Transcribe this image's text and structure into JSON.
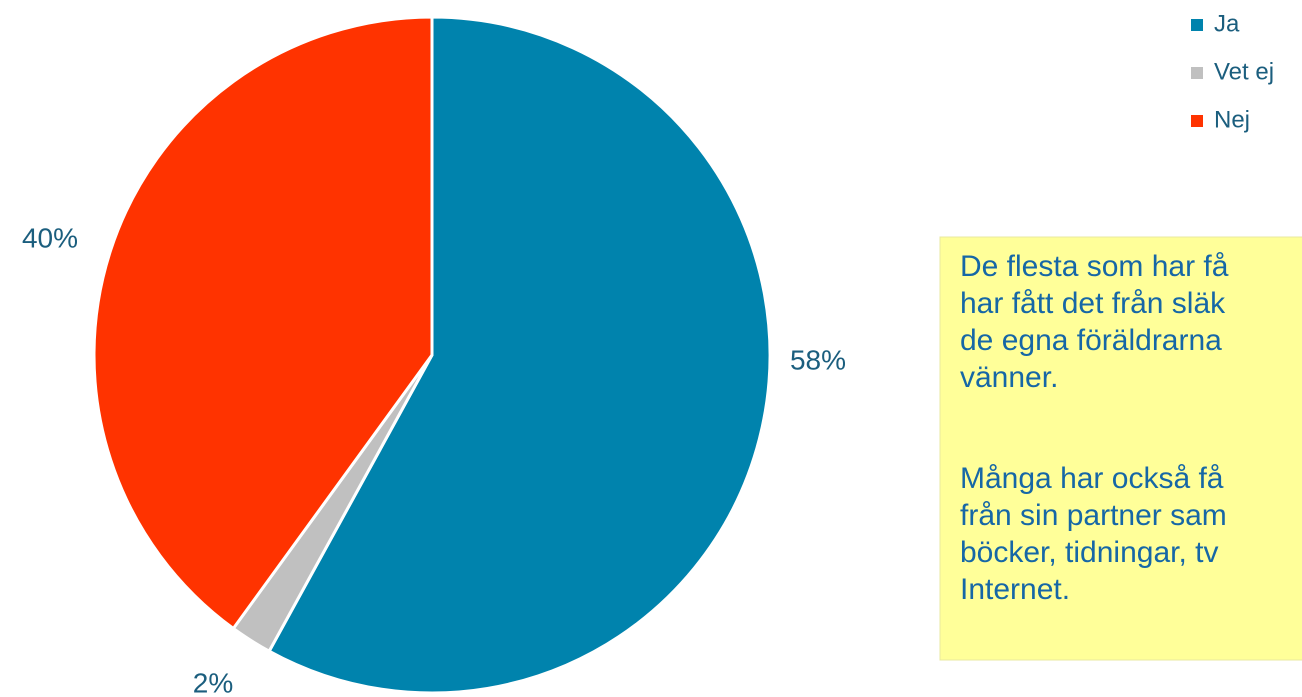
{
  "chart_data": {
    "type": "pie",
    "categories": [
      "Ja",
      "Vet ej",
      "Nej"
    ],
    "values": [
      58,
      2,
      40
    ],
    "value_labels": [
      "58%",
      "2%",
      "40%"
    ],
    "colors": [
      "#0083ad",
      "#c0c0c0",
      "#ff3300"
    ],
    "legend": "top-right",
    "annotations": [
      [
        "De flesta som har få",
        "har fått det från släk",
        "de egna föräldrarna",
        "vänner."
      ],
      [
        "Många har också få",
        "från sin partner sam",
        "böcker, tidningar, tv",
        "Internet."
      ]
    ]
  }
}
